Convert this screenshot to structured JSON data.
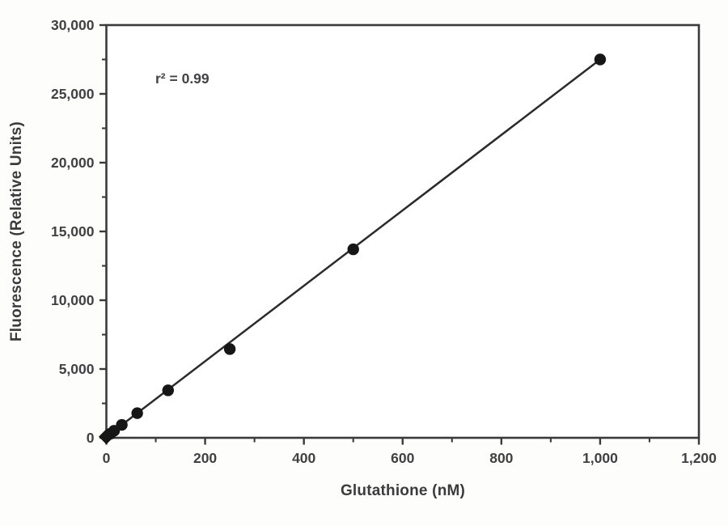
{
  "figure": {
    "background": "#fdfdfc",
    "ink_color": "#3a3a3c",
    "marker_color": "#161616",
    "line_color": "#2b2b2b",
    "label_color": "#414144"
  },
  "chart_data": {
    "type": "scatter",
    "title": "",
    "xlabel": "Glutathione (nM)",
    "ylabel": "Fluorescence (Relative Units)",
    "annotation": "r² = 0.99",
    "xlim": [
      0,
      1200
    ],
    "ylim": [
      0,
      30000
    ],
    "grid": false,
    "legend_position": "none",
    "x_major_ticks": {
      "values": [
        0,
        200,
        400,
        600,
        800,
        1000,
        1200
      ],
      "labels": [
        "0",
        "200",
        "400",
        "600",
        "800",
        "1,000",
        "1,200"
      ]
    },
    "x_minor_tick_values": [
      100,
      300,
      500,
      700,
      900,
      1100
    ],
    "y_major_ticks": {
      "values": [
        0,
        5000,
        10000,
        15000,
        20000,
        25000,
        30000
      ],
      "labels": [
        "0",
        "5,000",
        "10,000",
        "15,000",
        "20,000",
        "25,000",
        "30,000"
      ]
    },
    "y_minor_tick_values": [
      2500,
      7500,
      12500,
      17500,
      22500,
      27500
    ],
    "points": [
      {
        "x": 0,
        "y": 80,
        "marker": "diamond"
      },
      {
        "x": 7.8,
        "y": 290,
        "marker": "circle"
      },
      {
        "x": 15.6,
        "y": 510,
        "marker": "circle"
      },
      {
        "x": 31.3,
        "y": 940,
        "marker": "circle"
      },
      {
        "x": 62.5,
        "y": 1790,
        "marker": "circle"
      },
      {
        "x": 125,
        "y": 3450,
        "marker": "circle"
      },
      {
        "x": 250,
        "y": 6450,
        "marker": "circle"
      },
      {
        "x": 500,
        "y": 13700,
        "marker": "circle"
      },
      {
        "x": 1000,
        "y": 27500,
        "marker": "circle"
      }
    ],
    "fit_line": {
      "x": [
        0,
        1000
      ],
      "y": [
        80,
        27500
      ]
    }
  }
}
